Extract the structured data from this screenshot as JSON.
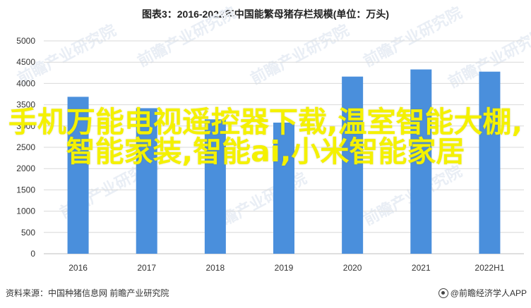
{
  "title": "图表3：2016-2022年中国能繁母猪存栏规模(单位：万头)",
  "chart_data": {
    "type": "bar",
    "categories": [
      "2016",
      "2017",
      "2018",
      "2019",
      "2020",
      "2021",
      "2022H1"
    ],
    "values": [
      3686,
      3419,
      3157,
      3080,
      4161,
      4329,
      4277
    ],
    "ylim": [
      0,
      5000
    ],
    "yticks": [
      0,
      500,
      1000,
      1500,
      2000,
      2500,
      3000,
      3500,
      4000,
      4500,
      5000
    ],
    "grid": true,
    "bar_color": "#4a8fdc"
  },
  "overlay_text": "手机万能电视遥控器下载,温室智能大棚,智能家装,智能ai,小米智能家居",
  "overlay_color": "#f4f100",
  "watermark_text": "前瞻产业研究院",
  "footer": {
    "source": "资料来源：中国种猪信息网 前瞻产业研究院",
    "brand": "@前瞻经济学人APP"
  }
}
